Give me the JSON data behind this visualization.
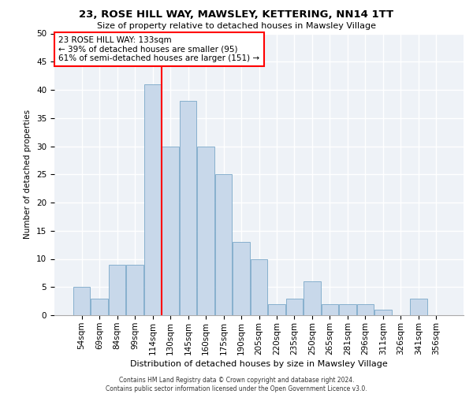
{
  "title": "23, ROSE HILL WAY, MAWSLEY, KETTERING, NN14 1TT",
  "subtitle": "Size of property relative to detached houses in Mawsley Village",
  "xlabel": "Distribution of detached houses by size in Mawsley Village",
  "ylabel": "Number of detached properties",
  "categories": [
    "54sqm",
    "69sqm",
    "84sqm",
    "99sqm",
    "114sqm",
    "130sqm",
    "145sqm",
    "160sqm",
    "175sqm",
    "190sqm",
    "205sqm",
    "220sqm",
    "235sqm",
    "250sqm",
    "265sqm",
    "281sqm",
    "296sqm",
    "311sqm",
    "326sqm",
    "341sqm",
    "356sqm"
  ],
  "values": [
    5,
    3,
    9,
    9,
    41,
    30,
    38,
    30,
    25,
    13,
    10,
    2,
    3,
    6,
    2,
    2,
    2,
    1,
    0,
    3,
    0
  ],
  "bar_color": "#c8d8ea",
  "bar_edge_color": "#7aa8c8",
  "annotation_text": "23 ROSE HILL WAY: 133sqm\n← 39% of detached houses are smaller (95)\n61% of semi-detached houses are larger (151) →",
  "annotation_box_color": "white",
  "annotation_box_edge": "red",
  "vline_color": "red",
  "vline_x": 4.5,
  "ylim": [
    0,
    50
  ],
  "yticks": [
    0,
    5,
    10,
    15,
    20,
    25,
    30,
    35,
    40,
    45,
    50
  ],
  "background_color": "#eef2f7",
  "grid_color": "white",
  "footer1": "Contains HM Land Registry data © Crown copyright and database right 2024.",
  "footer2": "Contains public sector information licensed under the Open Government Licence v3.0."
}
